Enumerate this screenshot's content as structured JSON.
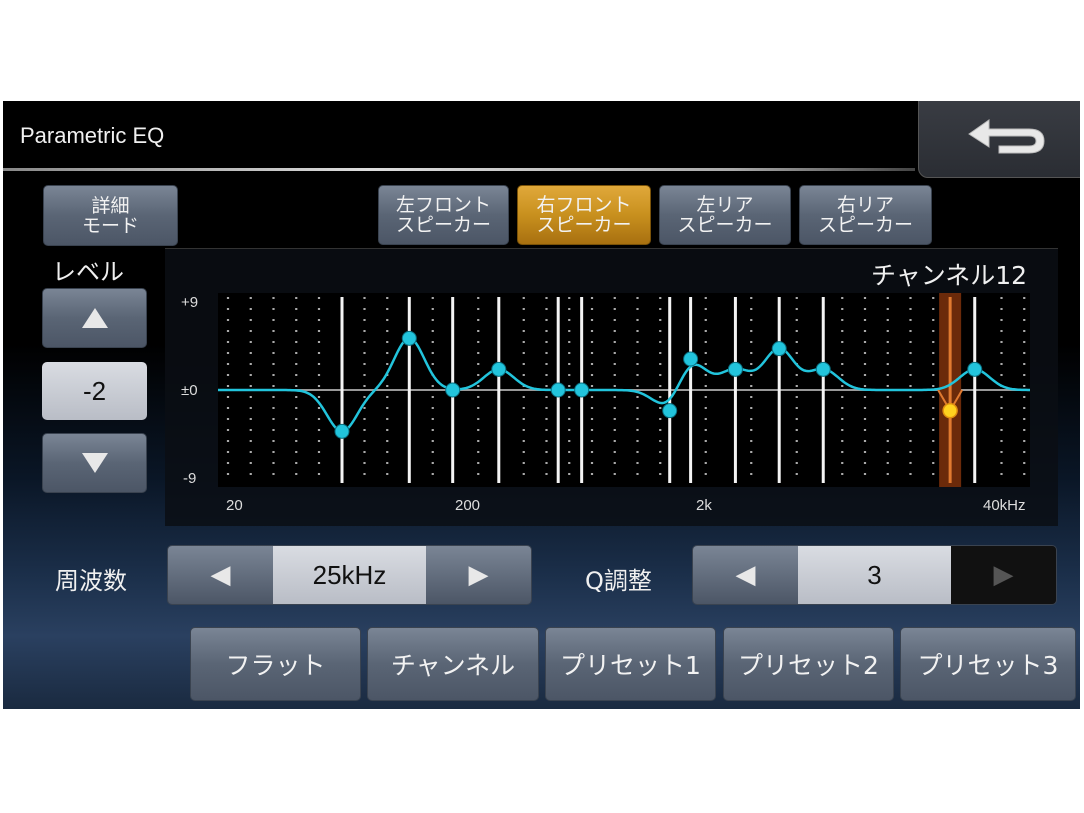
{
  "header": {
    "title": "Parametric EQ",
    "back_icon": "return-arrow-icon"
  },
  "detail_mode": {
    "label_line1": "詳細",
    "label_line2": "モード"
  },
  "speakers": [
    {
      "line1": "左フロント",
      "line2": "スピーカー",
      "selected": false
    },
    {
      "line1": "右フロント",
      "line2": "スピーカー",
      "selected": true
    },
    {
      "line1": "左リア",
      "line2": "スピーカー",
      "selected": false
    },
    {
      "line1": "右リア",
      "line2": "スピーカー",
      "selected": false
    }
  ],
  "level": {
    "label": "レベル",
    "value": "-2",
    "up_icon": "triangle-up-icon",
    "down_icon": "triangle-down-icon"
  },
  "channel_label": "チャンネル12",
  "chart_data": {
    "type": "line",
    "x_scale": "log",
    "x_ticks": [
      "20",
      "200",
      "2k",
      "40kHz"
    ],
    "y_ticks": [
      "+9",
      "±0",
      "-9"
    ],
    "ylim": [
      -9,
      9
    ],
    "curve_color": "#22c4dc",
    "selected_color": "#ffd21f",
    "highlight_color": "#e07a30",
    "bands": [
      {
        "freq": 56,
        "gain": -4
      },
      {
        "freq": 110,
        "gain": 5
      },
      {
        "freq": 170,
        "gain": 0
      },
      {
        "freq": 270,
        "gain": 2
      },
      {
        "freq": 490,
        "gain": 0
      },
      {
        "freq": 620,
        "gain": 0
      },
      {
        "freq": 1500,
        "gain": -2
      },
      {
        "freq": 1850,
        "gain": 3
      },
      {
        "freq": 2900,
        "gain": 2
      },
      {
        "freq": 4500,
        "gain": 4
      },
      {
        "freq": 7000,
        "gain": 2
      },
      {
        "freq": 25000,
        "gain": -2,
        "selected": true
      },
      {
        "freq": 32000,
        "gain": 2
      }
    ]
  },
  "frequency": {
    "label": "周波数",
    "value": "25kHz",
    "left_icon": "triangle-left-icon",
    "right_icon": "triangle-right-icon"
  },
  "q_adjust": {
    "label": "Q調整",
    "value": "3",
    "right_disabled": true
  },
  "bottom_buttons": [
    "フラット",
    "チャンネル",
    "プリセット1",
    "プリセット2",
    "プリセット3"
  ]
}
